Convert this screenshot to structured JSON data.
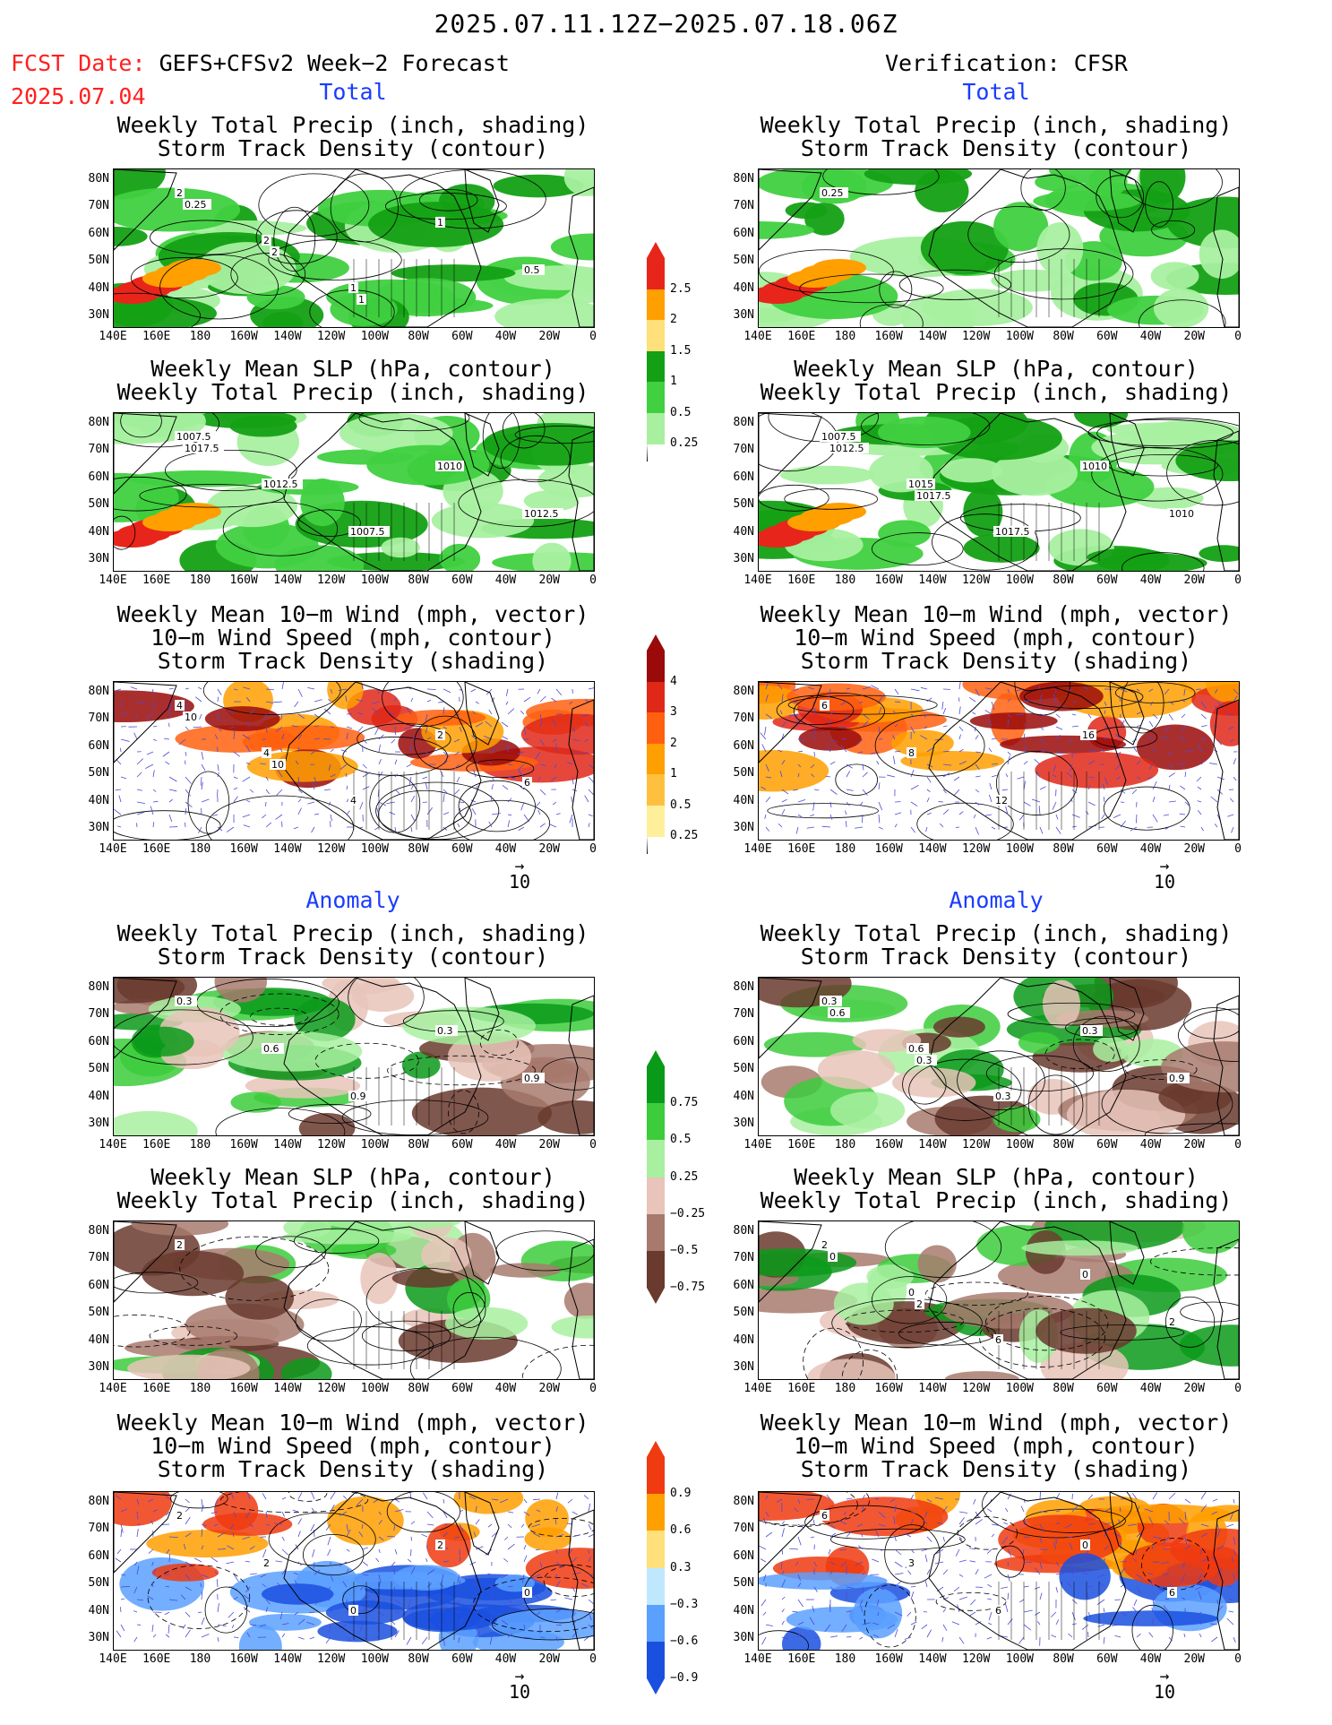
{
  "header": {
    "title": "2025.07.11.12Z−2025.07.18.06Z",
    "fcst_prefix": "FCST Date:",
    "fcst_model": "GEFS+CFSv2 Week−2 Forecast",
    "fcst_date": "2025.07.04",
    "verification": "Verification: CFSR"
  },
  "sections": {
    "total": "Total",
    "anomaly": "Anomaly"
  },
  "panel_titles": {
    "precip_storm": [
      "Weekly Total Precip (inch, shading)",
      "Storm Track Density (contour)"
    ],
    "slp_precip": [
      "Weekly Mean SLP (hPa, contour)",
      "Weekly Total Precip (inch, shading)"
    ],
    "wind": [
      "Weekly Mean 10−m Wind (mph, vector)",
      "10−m Wind Speed (mph, contour)",
      "Storm Track Density (shading)"
    ]
  },
  "axes": {
    "lat_labels": [
      "80N",
      "70N",
      "60N",
      "50N",
      "40N",
      "30N"
    ],
    "lon_labels": [
      "140E",
      "160E",
      "180",
      "160W",
      "140W",
      "120W",
      "100W",
      "80W",
      "60W",
      "40W",
      "20W",
      "0"
    ]
  },
  "vector_ref": {
    "value": "10",
    "arrow": "→"
  },
  "colorbars": {
    "precip_total": {
      "labels": [
        "2.5",
        "2",
        "1.5",
        "1",
        "0.5",
        "0.25"
      ],
      "colors": [
        "#e8251a",
        "#ff9f00",
        "#ffe07a",
        "#14a014",
        "#40d040",
        "#a8f0a0"
      ]
    },
    "storm_total": {
      "labels": [
        "4",
        "3",
        "2",
        "1",
        "0.5",
        "0.25"
      ],
      "colors": [
        "#9a0a0a",
        "#e02818",
        "#ff6010",
        "#ff9f00",
        "#ffc040",
        "#ffef9a"
      ]
    },
    "precip_anom": {
      "labels": [
        "0.75",
        "0.5",
        "0.25",
        "−0.25",
        "−0.5",
        "−0.75"
      ],
      "colors": [
        "#0a9a1a",
        "#3ccc3c",
        "#a8f0a0",
        "#e8c4ba",
        "#a87a6e",
        "#6a3a2e"
      ]
    },
    "storm_anom": {
      "labels": [
        "0.9",
        "0.6",
        "0.3",
        "−0.3",
        "−0.6",
        "−0.9"
      ],
      "colors": [
        "#f03a10",
        "#ff9f00",
        "#ffe07a",
        "#bfe8ff",
        "#5aa0ff",
        "#1a50e0"
      ]
    }
  },
  "panel_labels": {
    "fcst_total_precip": [
      "2",
      "2",
      "1",
      "1",
      "0.5",
      "0.25",
      "2",
      "1"
    ],
    "obs_total_precip": [
      "0.25"
    ],
    "fcst_total_slp": [
      "1007.5",
      "1012.5",
      "1007.5",
      "1010",
      "1012.5",
      "1017.5"
    ],
    "obs_total_slp": [
      "1007.5",
      "1015",
      "1017.5",
      "1010",
      "1010",
      "1012.5",
      "1017.5"
    ],
    "fcst_total_wind": [
      "4",
      "4",
      "4",
      "2",
      "6",
      "10",
      "10"
    ],
    "obs_total_wind": [
      "6",
      "8",
      "12",
      "16"
    ],
    "fcst_anom_precip": [
      "0.3",
      "0.6",
      "0.9",
      "0.3",
      "0.9"
    ],
    "obs_anom_precip": [
      "0.3",
      "0.6",
      "0.3",
      "0.3",
      "0.9",
      "0.6",
      "0.3"
    ],
    "fcst_anom_slp": [
      "2"
    ],
    "obs_anom_slp": [
      "2",
      "0",
      "6",
      "0",
      "2",
      "0",
      "2"
    ],
    "fcst_anom_wind": [
      "2",
      "2",
      "0",
      "2",
      "0"
    ],
    "obs_anom_wind": [
      "6",
      "3",
      "6",
      "0",
      "6"
    ]
  },
  "colors": {
    "title_red": "#ff2020",
    "section_blue": "#1a3cff"
  }
}
